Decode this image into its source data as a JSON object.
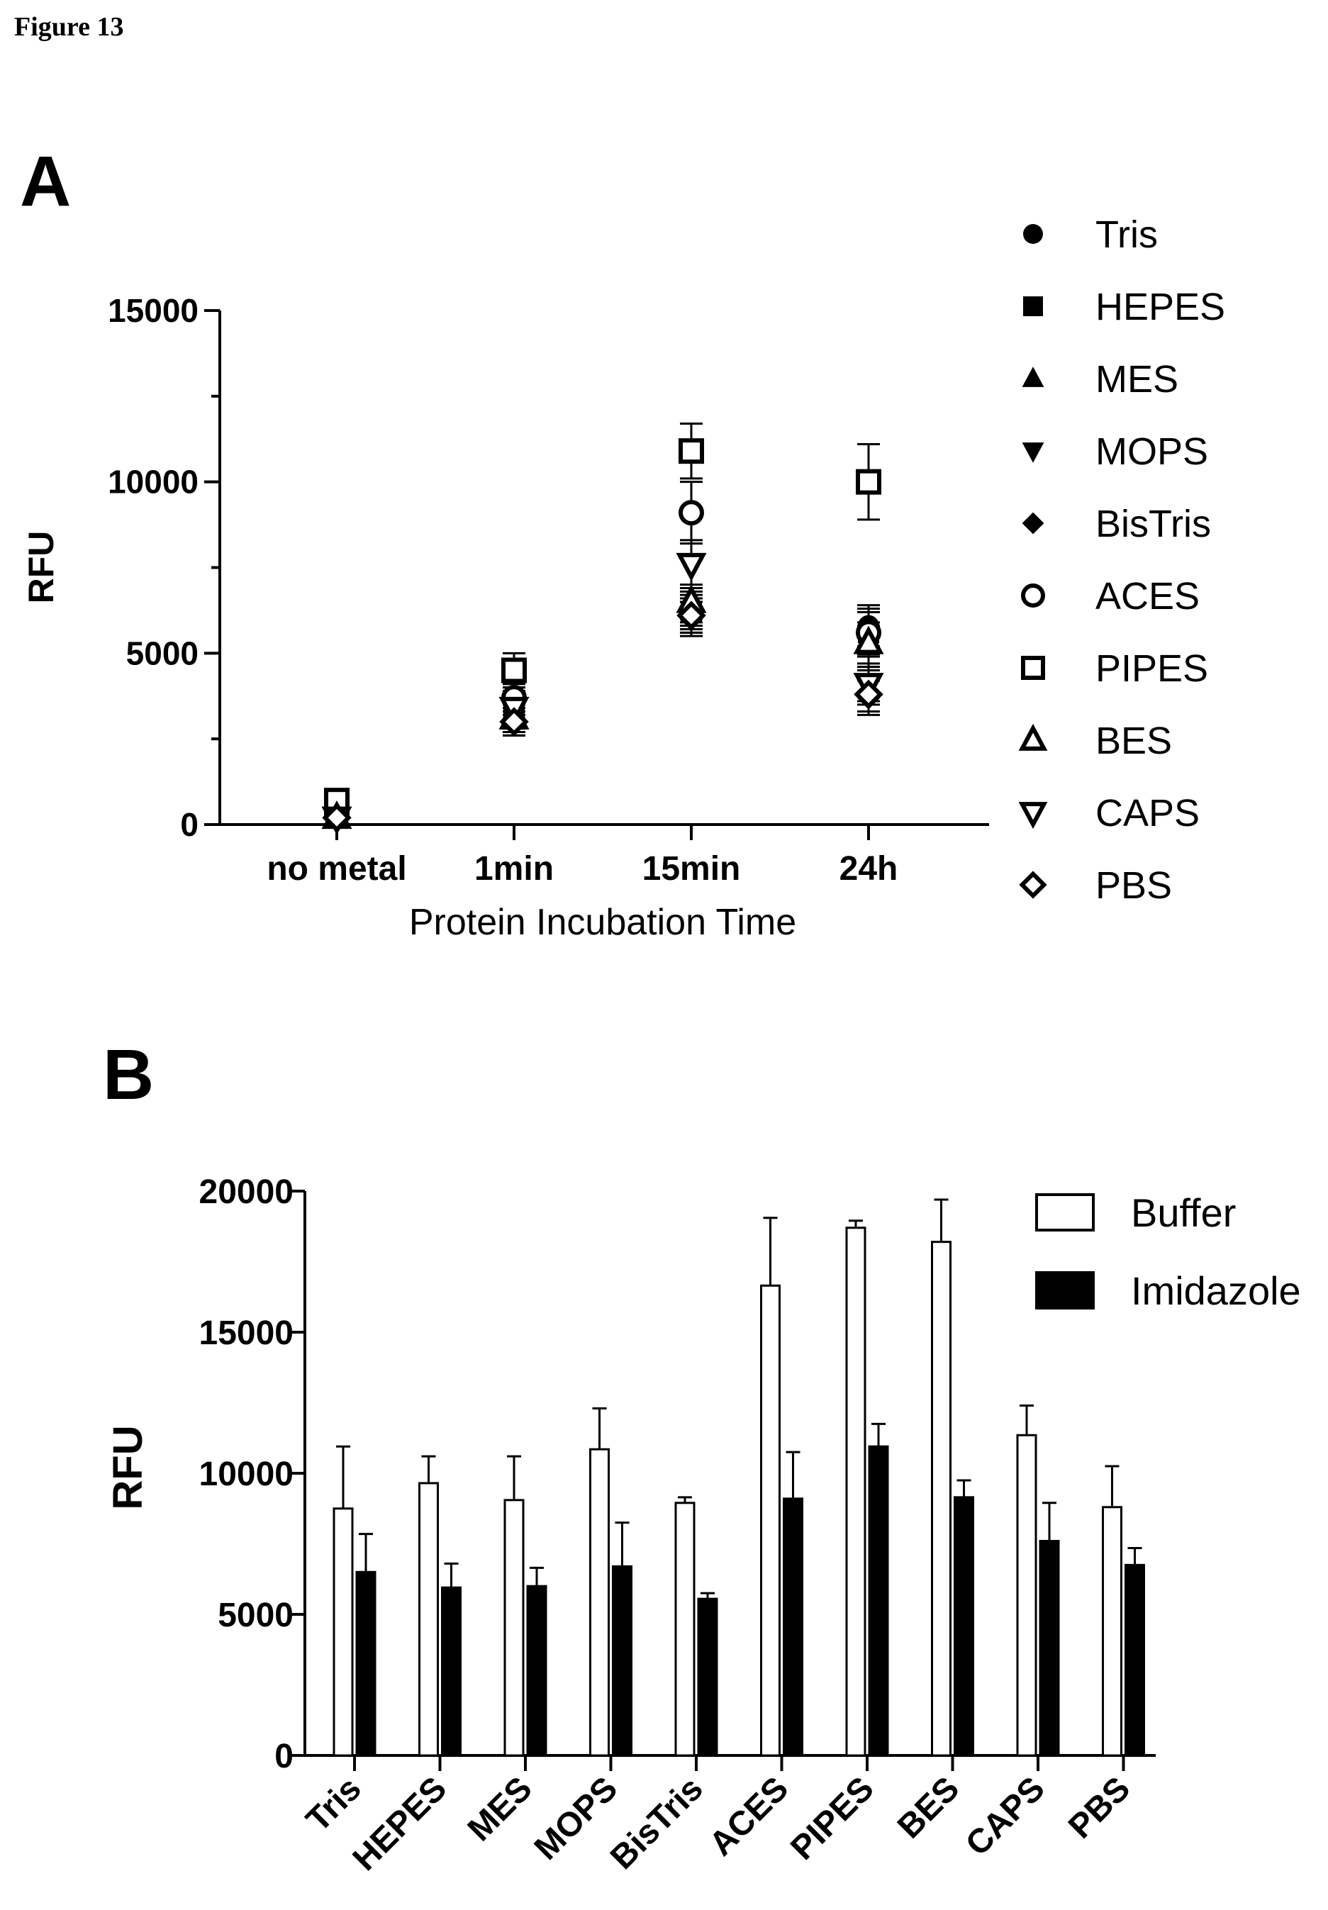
{
  "figure_label": "Figure 13",
  "chart_data": [
    {
      "panel_label": "A",
      "type": "scatter",
      "title": "",
      "xlabel": "Protein Incubation Time",
      "ylabel": "RFU",
      "categories": [
        "no metal",
        "1min",
        "15min",
        "24h"
      ],
      "yticks": [
        "0",
        "5000",
        "10000",
        "15000"
      ],
      "ylim": [
        0,
        15000
      ],
      "legend_position": "right",
      "series": [
        {
          "name": "Tris",
          "marker": "circle-filled",
          "values": [
            200,
            3500,
            6300,
            5800
          ],
          "errors": [
            0,
            400,
            500,
            600
          ]
        },
        {
          "name": "HEPES",
          "marker": "square-filled",
          "values": [
            300,
            3300,
            6200,
            5600
          ],
          "errors": [
            0,
            400,
            500,
            600
          ]
        },
        {
          "name": "MES",
          "marker": "triangle-up-filled",
          "values": [
            200,
            3200,
            6400,
            5200
          ],
          "errors": [
            0,
            400,
            500,
            600
          ]
        },
        {
          "name": "MOPS",
          "marker": "triangle-down-filled",
          "values": [
            200,
            3600,
            6100,
            4000
          ],
          "errors": [
            0,
            400,
            500,
            500
          ]
        },
        {
          "name": "BisTris",
          "marker": "diamond-filled",
          "values": [
            200,
            3000,
            6000,
            3700
          ],
          "errors": [
            0,
            400,
            500,
            500
          ]
        },
        {
          "name": "ACES",
          "marker": "circle-open",
          "values": [
            300,
            3700,
            9100,
            5600
          ],
          "errors": [
            0,
            400,
            900,
            700
          ]
        },
        {
          "name": "PIPES",
          "marker": "square-open",
          "values": [
            700,
            4500,
            10900,
            10000
          ],
          "errors": [
            0,
            500,
            800,
            1100
          ]
        },
        {
          "name": "BES",
          "marker": "triangle-up-open",
          "values": [
            200,
            3100,
            6500,
            5300
          ],
          "errors": [
            0,
            400,
            500,
            600
          ]
        },
        {
          "name": "CAPS",
          "marker": "triangle-down-open",
          "values": [
            200,
            3400,
            7600,
            4100
          ],
          "errors": [
            0,
            400,
            700,
            500
          ]
        },
        {
          "name": "PBS",
          "marker": "diamond-open",
          "values": [
            200,
            3000,
            6100,
            3800
          ],
          "errors": [
            0,
            400,
            500,
            500
          ]
        }
      ]
    },
    {
      "panel_label": "B",
      "type": "bar",
      "title": "",
      "xlabel": "",
      "ylabel": "RFU",
      "categories": [
        "Tris",
        "HEPES",
        "MES",
        "MOPS",
        "BisTris",
        "ACES",
        "PIPES",
        "BES",
        "CAPS",
        "PBS"
      ],
      "yticks": [
        "0",
        "5000",
        "10000",
        "15000",
        "20000"
      ],
      "ylim": [
        0,
        20000
      ],
      "legend_position": "top-right",
      "series": [
        {
          "name": "Buffer",
          "fill": "#ffffff",
          "values": [
            8750,
            9650,
            9050,
            10850,
            8950,
            16650,
            18700,
            18200,
            11350,
            8800
          ],
          "errors": [
            2200,
            950,
            1550,
            1450,
            200,
            2400,
            250,
            1500,
            1050,
            1450
          ]
        },
        {
          "name": "Imidazole",
          "fill": "#000000",
          "values": [
            6500,
            5950,
            6000,
            6700,
            5550,
            9100,
            10950,
            9150,
            7600,
            6750
          ],
          "errors": [
            1350,
            850,
            650,
            1550,
            200,
            1650,
            800,
            600,
            1350,
            600
          ]
        }
      ]
    }
  ]
}
